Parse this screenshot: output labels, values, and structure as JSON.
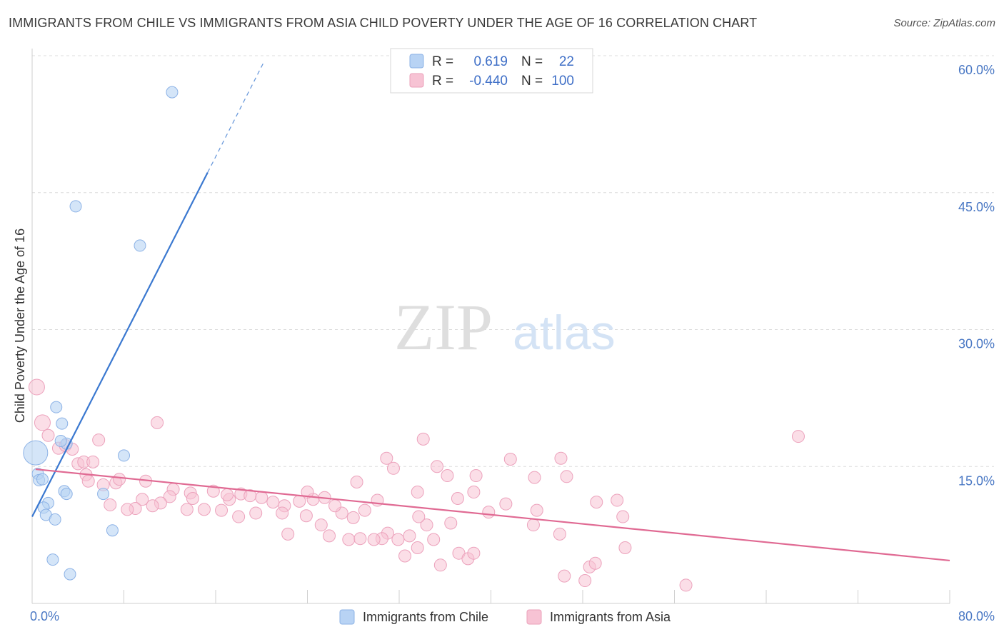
{
  "title": "IMMIGRANTS FROM CHILE VS IMMIGRANTS FROM ASIA CHILD POVERTY UNDER THE AGE OF 16 CORRELATION CHART",
  "source": "Source: ZipAtlas.com",
  "watermark": {
    "zip": "ZIP",
    "atlas": "atlas"
  },
  "colors": {
    "chile": "#3a78d0",
    "chile_fill": "#b8d3f4",
    "asia": "#e06a93",
    "asia_fill": "#f7c3d4",
    "tick": "#4a78c4"
  },
  "legend": {
    "rows": [
      {
        "r_label": "R =",
        "r_value": "0.619",
        "n_label": "N =",
        "n_value": "22"
      },
      {
        "r_label": "R =",
        "r_value": "-0.440",
        "n_label": "N =",
        "n_value": "100"
      }
    ]
  },
  "chart_data": {
    "type": "scatter",
    "xlabel": "",
    "ylabel": "Child Poverty Under the Age of 16",
    "xlim": [
      0,
      80
    ],
    "ylim": [
      0,
      60
    ],
    "x_tick_labels": [
      "0.0%",
      "80.0%"
    ],
    "y_ticks": [
      15,
      30,
      45,
      60
    ],
    "y_tick_labels": [
      "15.0%",
      "30.0%",
      "45.0%",
      "60.0%"
    ],
    "grid": true,
    "legend_position": "top-center",
    "series": [
      {
        "name": "Immigrants from Chile",
        "r": 0.619,
        "n": 22,
        "trend": {
          "x0": 0,
          "y0": 9.5,
          "x1": 15.3,
          "y1": 47.2,
          "dash_to_x": 20.2,
          "dash_to_y": 59.3
        },
        "points": [
          [
            12.2,
            56.0
          ],
          [
            3.8,
            43.5
          ],
          [
            9.4,
            39.2
          ],
          [
            2.1,
            21.5
          ],
          [
            2.6,
            19.7
          ],
          [
            3.0,
            17.5
          ],
          [
            2.5,
            17.8
          ],
          [
            8.0,
            16.2
          ],
          [
            0.3,
            16.5
          ],
          [
            0.5,
            14.2
          ],
          [
            0.6,
            13.5
          ],
          [
            2.8,
            12.3
          ],
          [
            3.0,
            12.0
          ],
          [
            6.2,
            12.0
          ],
          [
            1.4,
            11.0
          ],
          [
            1.0,
            10.5
          ],
          [
            1.2,
            9.7
          ],
          [
            2.0,
            9.2
          ],
          [
            7.0,
            8.0
          ],
          [
            1.8,
            4.8
          ],
          [
            3.3,
            3.2
          ],
          [
            0.9,
            13.6
          ]
        ]
      },
      {
        "name": "Immigrants from Asia",
        "r": -0.44,
        "n": 100,
        "trend": {
          "x0": 0.3,
          "y0": 14.7,
          "x1": 80,
          "y1": 4.7
        },
        "points": [
          [
            0.4,
            23.7
          ],
          [
            0.9,
            19.8
          ],
          [
            1.4,
            18.4
          ],
          [
            2.3,
            17.0
          ],
          [
            2.9,
            17.3
          ],
          [
            3.5,
            16.9
          ],
          [
            5.8,
            17.9
          ],
          [
            10.9,
            19.8
          ],
          [
            4.0,
            15.3
          ],
          [
            4.5,
            15.5
          ],
          [
            5.3,
            15.5
          ],
          [
            4.7,
            14.1
          ],
          [
            4.9,
            13.4
          ],
          [
            6.2,
            13.0
          ],
          [
            7.3,
            13.2
          ],
          [
            7.6,
            13.6
          ],
          [
            9.9,
            13.4
          ],
          [
            12.3,
            12.5
          ],
          [
            13.8,
            12.1
          ],
          [
            15.8,
            12.3
          ],
          [
            17.2,
            11.4
          ],
          [
            18.2,
            12.0
          ],
          [
            20.0,
            11.6
          ],
          [
            21.0,
            11.1
          ],
          [
            22.0,
            10.7
          ],
          [
            23.3,
            11.2
          ],
          [
            24.5,
            11.4
          ],
          [
            25.5,
            11.6
          ],
          [
            28.3,
            13.3
          ],
          [
            30.1,
            11.3
          ],
          [
            31.5,
            14.8
          ],
          [
            33.6,
            12.2
          ],
          [
            37.1,
            11.5
          ],
          [
            38.5,
            12.2
          ],
          [
            41.3,
            10.9
          ],
          [
            43.8,
            13.8
          ],
          [
            46.6,
            13.9
          ],
          [
            49.2,
            11.1
          ],
          [
            51.0,
            11.3
          ],
          [
            51.5,
            9.5
          ],
          [
            44.0,
            10.2
          ],
          [
            43.7,
            8.6
          ],
          [
            39.8,
            10.0
          ],
          [
            36.5,
            8.8
          ],
          [
            34.4,
            8.6
          ],
          [
            33.7,
            9.5
          ],
          [
            35.0,
            7.0
          ],
          [
            32.9,
            7.4
          ],
          [
            31.0,
            7.7
          ],
          [
            29.0,
            10.2
          ],
          [
            27.0,
            9.9
          ],
          [
            25.2,
            8.6
          ],
          [
            23.9,
            9.6
          ],
          [
            22.3,
            7.6
          ],
          [
            21.8,
            9.9
          ],
          [
            19.5,
            9.9
          ],
          [
            18.0,
            9.5
          ],
          [
            16.5,
            10.2
          ],
          [
            15.0,
            10.3
          ],
          [
            13.5,
            10.3
          ],
          [
            12.0,
            11.7
          ],
          [
            11.2,
            11.0
          ],
          [
            9.6,
            11.4
          ],
          [
            9.0,
            10.4
          ],
          [
            8.3,
            10.3
          ],
          [
            6.8,
            10.8
          ],
          [
            10.5,
            10.7
          ],
          [
            14.0,
            11.5
          ],
          [
            17.0,
            11.9
          ],
          [
            19.0,
            11.8
          ],
          [
            24.0,
            12.2
          ],
          [
            26.4,
            10.7
          ],
          [
            28.0,
            9.4
          ],
          [
            30.5,
            7.1
          ],
          [
            31.9,
            7.0
          ],
          [
            27.6,
            7.0
          ],
          [
            28.6,
            7.1
          ],
          [
            29.8,
            7.0
          ],
          [
            25.9,
            7.4
          ],
          [
            32.5,
            5.2
          ],
          [
            33.6,
            6.1
          ],
          [
            35.6,
            4.2
          ],
          [
            37.2,
            5.5
          ],
          [
            38.0,
            4.9
          ],
          [
            38.5,
            5.5
          ],
          [
            36.2,
            14.0
          ],
          [
            38.7,
            14.0
          ],
          [
            41.7,
            15.8
          ],
          [
            46.1,
            15.9
          ],
          [
            35.3,
            15.0
          ],
          [
            34.1,
            18.0
          ],
          [
            30.9,
            15.9
          ],
          [
            46.0,
            7.6
          ],
          [
            46.4,
            3.0
          ],
          [
            48.2,
            2.5
          ],
          [
            48.6,
            4.0
          ],
          [
            49.1,
            4.4
          ],
          [
            51.7,
            6.1
          ],
          [
            57.0,
            2.0
          ],
          [
            66.8,
            18.3
          ]
        ]
      }
    ]
  },
  "bottom_legend": {
    "chile": "Immigrants from Chile",
    "asia": "Immigrants from Asia"
  }
}
